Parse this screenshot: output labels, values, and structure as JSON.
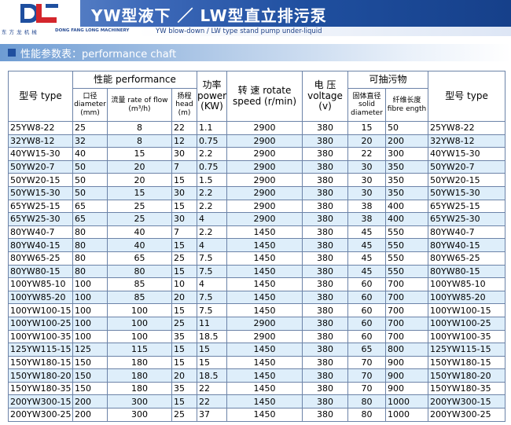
{
  "header": {
    "logo_text": "DL",
    "title": "YW型液下  ／ LW型直立排污泵",
    "company_cn": "东 方 龙 机 械",
    "company_en": "DONG FANG LONG MACHINERY",
    "tagline": "YW blow-down / LW type stand pump under-liquid",
    "brand_color": "#1f4f9f"
  },
  "section": {
    "title": "性能参数表：performance chaft"
  },
  "table": {
    "headers": {
      "type_left": "型号 type",
      "performance": "性能 performance",
      "diameter": "口径 diameter (mm)",
      "flow": "流量 rate of flow (m³/h)",
      "head": "扬程 head (m)",
      "power": "功率 power (KW)",
      "speed": "转 速 rotate speed (r/min)",
      "voltage": "电 压 voltage (v)",
      "pumpable": "可抽污物",
      "solid": "固体直径 solid diameter",
      "fibre": "纤维长度 fibre ength",
      "type_right": "型号 type"
    },
    "rows": [
      [
        "25YW8-22",
        "25",
        "8",
        "22",
        "1.1",
        "2900",
        "380",
        "15",
        "50",
        "25YW8-22"
      ],
      [
        "32YW8-12",
        "32",
        "8",
        "12",
        "0.75",
        "2900",
        "380",
        "20",
        "200",
        "32YW8-12"
      ],
      [
        "40YW15-30",
        "40",
        "15",
        "30",
        "2.2",
        "2900",
        "380",
        "22",
        "300",
        "40YW15-30"
      ],
      [
        "50YW20-7",
        "50",
        "20",
        "7",
        "0.75",
        "2900",
        "380",
        "30",
        "350",
        "50YW20-7"
      ],
      [
        "50YW20-15",
        "50",
        "20",
        "15",
        "1.5",
        "2900",
        "380",
        "30",
        "350",
        "50YW20-15"
      ],
      [
        "50YW15-30",
        "50",
        "15",
        "30",
        "2.2",
        "2900",
        "380",
        "30",
        "350",
        "50YW15-30"
      ],
      [
        "65YW25-15",
        "65",
        "25",
        "15",
        "2.2",
        "2900",
        "380",
        "38",
        "400",
        "65YW25-15"
      ],
      [
        "65YW25-30",
        "65",
        "25",
        "30",
        "4",
        "2900",
        "380",
        "38",
        "400",
        "65YW25-30"
      ],
      [
        "80YW40-7",
        "80",
        "40",
        "7",
        "2.2",
        "1450",
        "380",
        "45",
        "550",
        "80YW40-7"
      ],
      [
        "80YW40-15",
        "80",
        "40",
        "15",
        "4",
        "1450",
        "380",
        "45",
        "550",
        "80YW40-15"
      ],
      [
        "80YW65-25",
        "80",
        "65",
        "25",
        "7.5",
        "1450",
        "380",
        "45",
        "550",
        "80YW65-25"
      ],
      [
        "80YW80-15",
        "80",
        "80",
        "15",
        "7.5",
        "1450",
        "380",
        "45",
        "550",
        "80YW80-15"
      ],
      [
        "100YW85-10",
        "100",
        "85",
        "10",
        "4",
        "1450",
        "380",
        "60",
        "700",
        "100YW85-10"
      ],
      [
        "100YW85-20",
        "100",
        "85",
        "20",
        "7.5",
        "1450",
        "380",
        "60",
        "700",
        "100YW85-20"
      ],
      [
        "100YW100-15",
        "100",
        "100",
        "15",
        "7.5",
        "1450",
        "380",
        "60",
        "700",
        "100YW100-15"
      ],
      [
        "100YW100-25",
        "100",
        "100",
        "25",
        "11",
        "2900",
        "380",
        "60",
        "700",
        "100YW100-25"
      ],
      [
        "100YW100-35",
        "100",
        "100",
        "35",
        "18.5",
        "2900",
        "380",
        "60",
        "700",
        "100YW100-35"
      ],
      [
        "125YW115-15",
        "125",
        "115",
        "15",
        "15",
        "1450",
        "380",
        "65",
        "800",
        "125YW115-15"
      ],
      [
        "150YW180-15",
        "150",
        "180",
        "15",
        "15",
        "1450",
        "380",
        "70",
        "900",
        "150YW180-15"
      ],
      [
        "150YW180-20",
        "150",
        "180",
        "20",
        "18.5",
        "1450",
        "380",
        "70",
        "900",
        "150YW180-20"
      ],
      [
        "150YW180-35",
        "150",
        "180",
        "35",
        "22",
        "1450",
        "380",
        "70",
        "900",
        "150YW180-35"
      ],
      [
        "200YW300-15",
        "200",
        "300",
        "15",
        "22",
        "1450",
        "380",
        "80",
        "1000",
        "200YW300-15"
      ],
      [
        "200YW300-25",
        "200",
        "300",
        "25",
        "37",
        "1450",
        "380",
        "80",
        "1000",
        "200YW300-25"
      ]
    ]
  }
}
